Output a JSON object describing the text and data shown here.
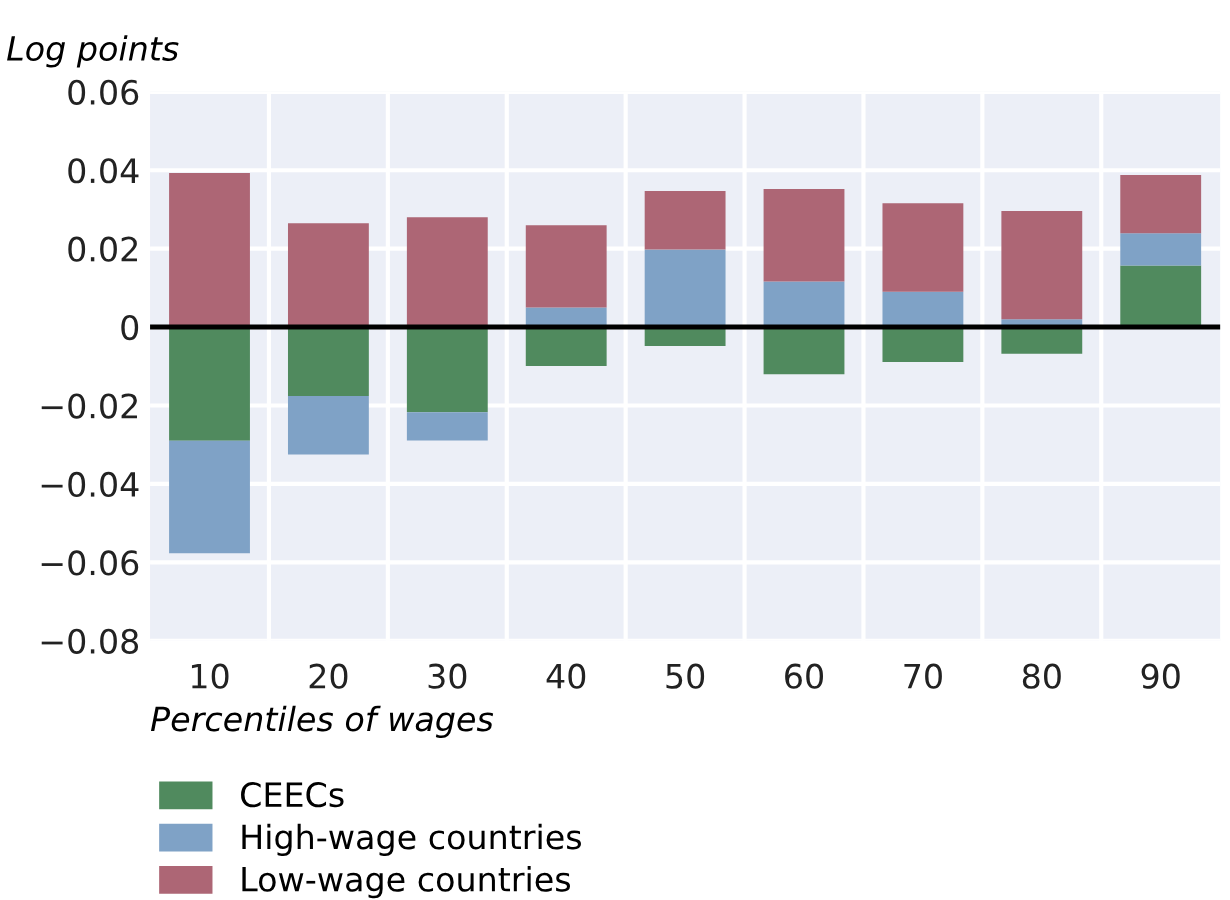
{
  "chart_data": {
    "type": "bar",
    "stacked": true,
    "ylabel": "Log points",
    "xlabel": "Percentiles of wages",
    "categories": [
      "10",
      "20",
      "30",
      "40",
      "50",
      "60",
      "70",
      "80",
      "90"
    ],
    "series": [
      {
        "name": "CEECs",
        "color": "#508a5e",
        "values": [
          -0.029,
          -0.0176,
          -0.0217,
          -0.0099,
          -0.0048,
          -0.012,
          -0.0089,
          -0.0068,
          0.0157
        ]
      },
      {
        "name": "High-wage countries",
        "color": "#7fa2c6",
        "values": [
          -0.0287,
          -0.0149,
          -0.0072,
          0.005,
          0.0198,
          0.0116,
          0.009,
          0.002,
          0.0082
        ]
      },
      {
        "name": "Low-wage countries",
        "color": "#ad6675",
        "values": [
          0.0393,
          0.0265,
          0.028,
          0.021,
          0.0149,
          0.0236,
          0.0226,
          0.0276,
          0.0149
        ]
      }
    ],
    "ylim": [
      -0.08,
      0.06
    ],
    "yticks": [
      {
        "value": -0.08,
        "label": "−0.08"
      },
      {
        "value": -0.06,
        "label": "−0.06"
      },
      {
        "value": -0.04,
        "label": "−0.04"
      },
      {
        "value": -0.02,
        "label": "−0.02"
      },
      0,
      0.02,
      0.04,
      0.06
    ],
    "ref_lines": [
      {
        "axis": "y",
        "value": 0,
        "color": "#000000"
      }
    ],
    "grid": true,
    "legend": "bottom"
  }
}
